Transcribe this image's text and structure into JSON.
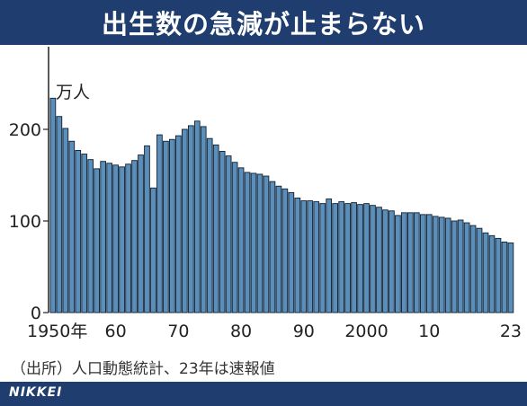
{
  "header": {
    "title": "出生数の急減が止まらない"
  },
  "chart_data": {
    "type": "bar",
    "unit": "万人",
    "ylim": [
      0,
      290
    ],
    "y_ticks": [
      0,
      100,
      200
    ],
    "x_tick_labels": [
      {
        "year": 1950,
        "label": "1950年"
      },
      {
        "year": 1960,
        "label": "60"
      },
      {
        "year": 1970,
        "label": "70"
      },
      {
        "year": 1980,
        "label": "80"
      },
      {
        "year": 1990,
        "label": "90"
      },
      {
        "year": 2000,
        "label": "2000"
      },
      {
        "year": 2010,
        "label": "10"
      },
      {
        "year": 2023,
        "label": "23"
      }
    ],
    "x": [
      1950,
      1951,
      1952,
      1953,
      1954,
      1955,
      1956,
      1957,
      1958,
      1959,
      1960,
      1961,
      1962,
      1963,
      1964,
      1965,
      1966,
      1967,
      1968,
      1969,
      1970,
      1971,
      1972,
      1973,
      1974,
      1975,
      1976,
      1977,
      1978,
      1979,
      1980,
      1981,
      1982,
      1983,
      1984,
      1985,
      1986,
      1987,
      1988,
      1989,
      1990,
      1991,
      1992,
      1993,
      1994,
      1995,
      1996,
      1997,
      1998,
      1999,
      2000,
      2001,
      2002,
      2003,
      2004,
      2005,
      2006,
      2007,
      2008,
      2009,
      2010,
      2011,
      2012,
      2013,
      2014,
      2015,
      2016,
      2017,
      2018,
      2019,
      2020,
      2021,
      2022,
      2023
    ],
    "values": [
      234,
      214,
      201,
      187,
      177,
      173,
      167,
      157,
      165,
      163,
      161,
      159,
      162,
      166,
      172,
      182,
      136,
      194,
      187,
      189,
      193,
      200,
      204,
      209,
      203,
      190,
      183,
      176,
      171,
      164,
      158,
      153,
      152,
      151,
      149,
      143,
      138,
      135,
      131,
      125,
      122,
      122,
      121,
      119,
      124,
      119,
      121,
      119,
      120,
      118,
      119,
      117,
      115,
      112,
      111,
      106,
      109,
      109,
      109,
      107,
      107,
      105,
      104,
      103,
      100,
      101,
      98,
      95,
      92,
      87,
      84,
      81,
      77,
      76
    ],
    "bar_color": "#5b8fb9",
    "bar_outline": "#0d1f33",
    "grid": false
  },
  "source_text": "（出所）人口動態統計、23年は速報値",
  "footer": {
    "logo": "NIKKEI"
  },
  "colors": {
    "brand": "#1f3d6e"
  }
}
